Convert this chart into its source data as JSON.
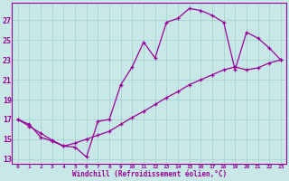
{
  "xlabel": "Windchill (Refroidissement éolien,°C)",
  "bg_color": "#c8e8e8",
  "line_color": "#990099",
  "grid_color": "#9fcfcf",
  "xlim_min": -0.5,
  "xlim_max": 23.5,
  "ylim_min": 12.5,
  "ylim_max": 28.8,
  "yticks": [
    13,
    15,
    17,
    19,
    21,
    23,
    25,
    27
  ],
  "xticks": [
    0,
    1,
    2,
    3,
    4,
    5,
    6,
    7,
    8,
    9,
    10,
    11,
    12,
    13,
    14,
    15,
    16,
    17,
    18,
    19,
    20,
    21,
    22,
    23
  ],
  "curve1_x": [
    0,
    1,
    2,
    3,
    4,
    5,
    6,
    7,
    8,
    9,
    10,
    11,
    12,
    13,
    14,
    15,
    16,
    17,
    18,
    19,
    20,
    21,
    22,
    23
  ],
  "curve1_y": [
    17.0,
    16.5,
    15.2,
    14.8,
    14.3,
    14.2,
    13.2,
    16.8,
    17.0,
    20.5,
    22.3,
    24.8,
    23.2,
    26.8,
    27.2,
    28.2,
    28.0,
    27.5,
    26.8,
    22.0,
    25.8,
    25.2,
    24.2,
    23.0
  ],
  "curve2_x": [
    0,
    1,
    2,
    3,
    4,
    5,
    6,
    7,
    8,
    9,
    10,
    11,
    12,
    13,
    14,
    15,
    16,
    17,
    18,
    19,
    20,
    21,
    22,
    23
  ],
  "curve2_y": [
    17.0,
    16.3,
    15.6,
    14.9,
    14.3,
    14.6,
    15.0,
    15.4,
    15.8,
    16.5,
    17.2,
    17.8,
    18.5,
    19.2,
    19.8,
    20.5,
    21.0,
    21.5,
    22.0,
    22.3,
    22.0,
    22.2,
    22.7,
    23.0
  ]
}
